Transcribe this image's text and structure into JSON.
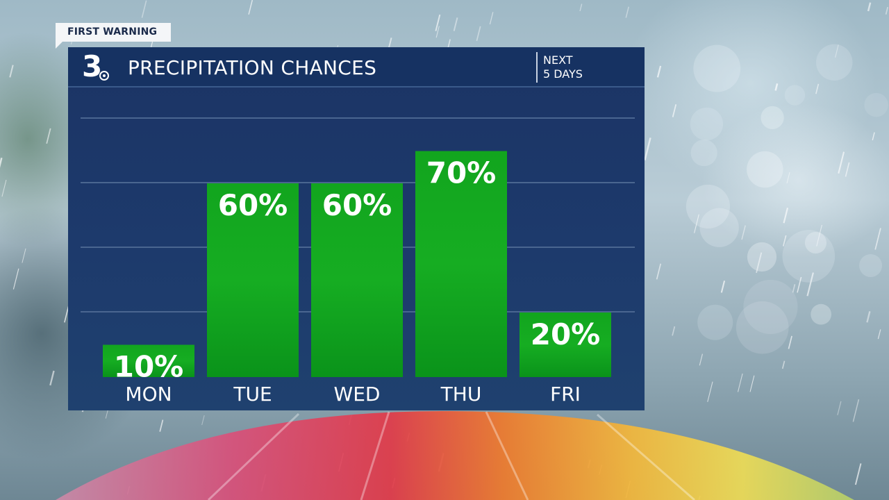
{
  "badge": {
    "text": "FIRST WARNING"
  },
  "station": {
    "logo_text": "3"
  },
  "header": {
    "title": "PRECIPITATION CHANCES",
    "range_line1": "NEXT",
    "range_line2": "5 DAYS"
  },
  "colors": {
    "panel": "#1d3a6c",
    "header": "#163262",
    "bar": "#0fa11a",
    "text": "#ffffff"
  },
  "chart_data": {
    "type": "bar",
    "title": "PRECIPITATION CHANCES",
    "categories": [
      "MON",
      "TUE",
      "WED",
      "THU",
      "FRI"
    ],
    "values": [
      10,
      60,
      60,
      70,
      20
    ],
    "value_labels": [
      "10%",
      "60%",
      "60%",
      "70%",
      "20%"
    ],
    "ylim": [
      0,
      100
    ],
    "grid": true,
    "legend": "none"
  }
}
